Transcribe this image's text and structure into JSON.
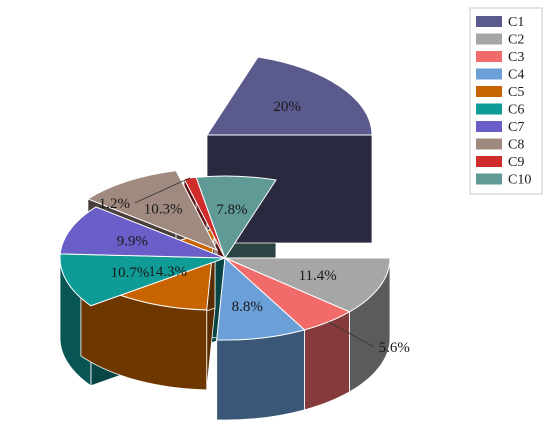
{
  "chart_data": {
    "type": "pie",
    "title": "",
    "legend_position": "top-right",
    "slices": [
      {
        "name": "C1",
        "value": 20,
        "label": "20%",
        "color": "#5a5a8c"
      },
      {
        "name": "C2",
        "value": 11.4,
        "label": "11.4%",
        "color": "#a6a6a6"
      },
      {
        "name": "C3",
        "value": 5.6,
        "label": "5.6%",
        "color": "#f26b6b"
      },
      {
        "name": "C4",
        "value": 8.8,
        "label": "8.8%",
        "color": "#6a9fd8"
      },
      {
        "name": "C5",
        "value": 14.3,
        "label": "14.3%",
        "color": "#c86400"
      },
      {
        "name": "C6",
        "value": 10.7,
        "label": "10.7%",
        "color": "#0f9b96"
      },
      {
        "name": "C7",
        "value": 9.9,
        "label": "9.9%",
        "color": "#6a5fc8"
      },
      {
        "name": "C8",
        "value": 10.3,
        "label": "10.3%",
        "color": "#a08a80"
      },
      {
        "name": "C9",
        "value": 1.2,
        "label": "1.2%",
        "color": "#d02c2c"
      },
      {
        "name": "C10",
        "value": 7.8,
        "label": "7.8%",
        "color": "#5f9a96"
      }
    ]
  }
}
